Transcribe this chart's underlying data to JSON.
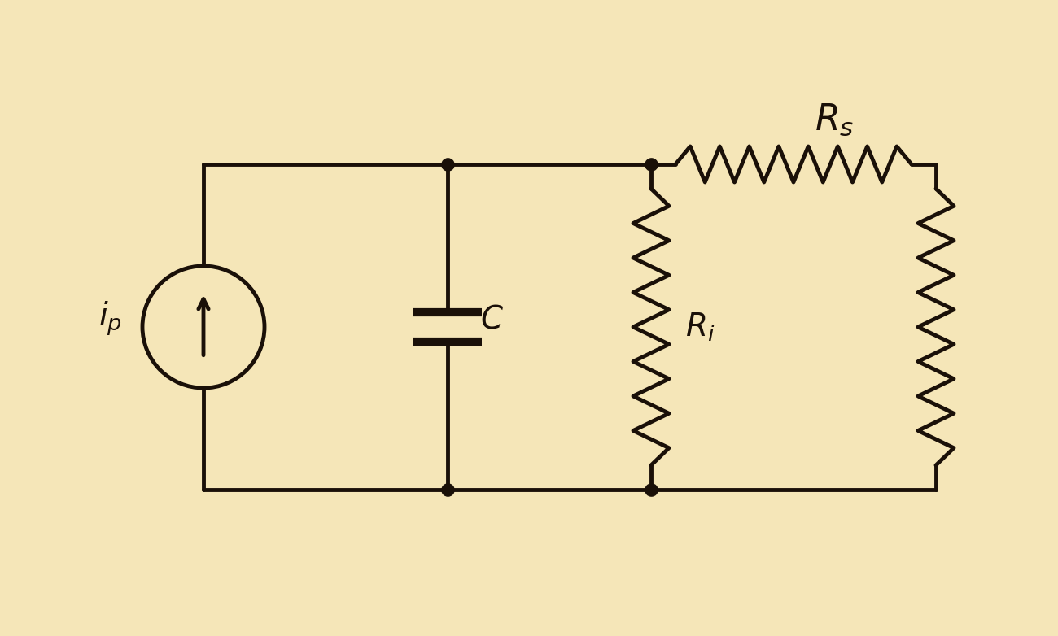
{
  "bg_color": "#f5e6b8",
  "line_color": "#1a1008",
  "line_width": 3.5,
  "fig_width": 13.0,
  "fig_height": 7.82,
  "label_ip": "i",
  "label_ip_sub": "p",
  "label_C": "C",
  "label_Ri": "R",
  "label_Ri_sub": "i",
  "label_Rs": "R",
  "label_Rs_sub": "s",
  "font_size_labels": 28,
  "font_size_italic": true
}
